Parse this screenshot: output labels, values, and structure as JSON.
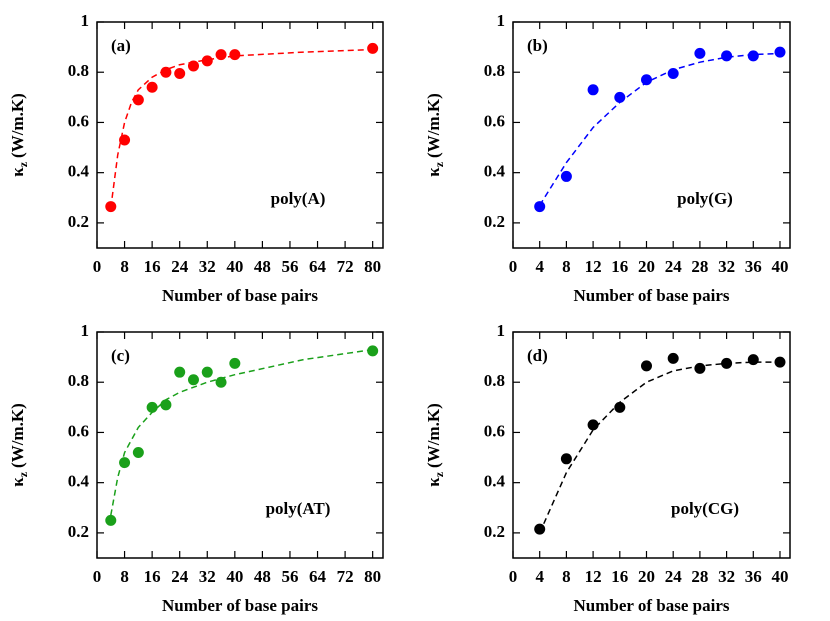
{
  "chart_data": [
    {
      "type": "scatter",
      "panel": "(a)",
      "annotation": "poly(A)",
      "color": "#ff0000",
      "x": [
        4,
        8,
        12,
        16,
        20,
        24,
        28,
        32,
        36,
        40,
        80
      ],
      "values": [
        0.265,
        0.53,
        0.69,
        0.74,
        0.8,
        0.795,
        0.825,
        0.845,
        0.87,
        0.87,
        0.895
      ],
      "fit": {
        "x": [
          4,
          6,
          8,
          10,
          12,
          16,
          20,
          24,
          32,
          40,
          60,
          80
        ],
        "values": [
          0.26,
          0.47,
          0.6,
          0.68,
          0.73,
          0.78,
          0.81,
          0.83,
          0.85,
          0.865,
          0.88,
          0.89
        ]
      },
      "xlim": [
        0,
        83
      ],
      "ylim": [
        0.1,
        1
      ],
      "xticks": [
        0,
        8,
        16,
        24,
        32,
        40,
        48,
        56,
        64,
        72,
        80
      ],
      "yticks": [
        0.2,
        0.4,
        0.6,
        0.8,
        1
      ],
      "xlabel": "Number of base pairs",
      "ylabel": {
        "symbol": "κ",
        "subscript": "z",
        "unit": "(W/m.K)"
      }
    },
    {
      "type": "scatter",
      "panel": "(b)",
      "annotation": "poly(G)",
      "color": "#0000ff",
      "x": [
        4,
        8,
        12,
        16,
        20,
        24,
        28,
        32,
        36,
        40
      ],
      "values": [
        0.265,
        0.385,
        0.73,
        0.7,
        0.77,
        0.795,
        0.875,
        0.865,
        0.865,
        0.88
      ],
      "fit": {
        "x": [
          4,
          8,
          12,
          16,
          20,
          24,
          28,
          32,
          36,
          40
        ],
        "values": [
          0.27,
          0.44,
          0.58,
          0.68,
          0.76,
          0.81,
          0.84,
          0.86,
          0.87,
          0.875
        ]
      },
      "xlim": [
        0,
        41.5
      ],
      "ylim": [
        0.1,
        1
      ],
      "xticks": [
        0,
        4,
        8,
        12,
        16,
        20,
        24,
        28,
        32,
        36,
        40
      ],
      "yticks": [
        0.2,
        0.4,
        0.6,
        0.8,
        1
      ],
      "xlabel": "Number of base pairs",
      "ylabel": {
        "symbol": "κ",
        "subscript": "z",
        "unit": "(W/m.K)"
      }
    },
    {
      "type": "scatter",
      "panel": "(c)",
      "annotation": "poly(AT)",
      "color": "#1aa01a",
      "x": [
        4,
        8,
        12,
        16,
        20,
        24,
        28,
        32,
        36,
        40,
        80
      ],
      "values": [
        0.25,
        0.48,
        0.52,
        0.7,
        0.71,
        0.84,
        0.81,
        0.84,
        0.8,
        0.875,
        0.925
      ],
      "fit": {
        "x": [
          4,
          6,
          8,
          12,
          16,
          20,
          24,
          32,
          40,
          60,
          80
        ],
        "values": [
          0.27,
          0.42,
          0.52,
          0.62,
          0.68,
          0.73,
          0.76,
          0.8,
          0.83,
          0.89,
          0.93
        ]
      },
      "xlim": [
        0,
        83
      ],
      "ylim": [
        0.1,
        1
      ],
      "xticks": [
        0,
        8,
        16,
        24,
        32,
        40,
        48,
        56,
        64,
        72,
        80
      ],
      "yticks": [
        0.2,
        0.4,
        0.6,
        0.8,
        1
      ],
      "xlabel": "Number of base pairs",
      "ylabel": {
        "symbol": "κ",
        "subscript": "z",
        "unit": "(W/m.K)"
      }
    },
    {
      "type": "scatter",
      "panel": "(d)",
      "annotation": "poly(CG)",
      "color": "#000000",
      "x": [
        4,
        8,
        12,
        16,
        20,
        24,
        28,
        32,
        36,
        40
      ],
      "values": [
        0.215,
        0.495,
        0.63,
        0.7,
        0.865,
        0.895,
        0.855,
        0.875,
        0.89,
        0.88
      ],
      "fit": {
        "x": [
          4,
          8,
          12,
          16,
          20,
          24,
          28,
          32,
          36,
          40
        ],
        "values": [
          0.2,
          0.44,
          0.61,
          0.72,
          0.8,
          0.845,
          0.865,
          0.875,
          0.88,
          0.88
        ]
      },
      "xlim": [
        0,
        41.5
      ],
      "ylim": [
        0.1,
        1
      ],
      "xticks": [
        0,
        4,
        8,
        12,
        16,
        20,
        24,
        28,
        32,
        36,
        40
      ],
      "yticks": [
        0.2,
        0.4,
        0.6,
        0.8,
        1
      ],
      "xlabel": "Number of base pairs",
      "ylabel": {
        "symbol": "κ",
        "subscript": "z",
        "unit": "(W/m.K)"
      }
    }
  ]
}
